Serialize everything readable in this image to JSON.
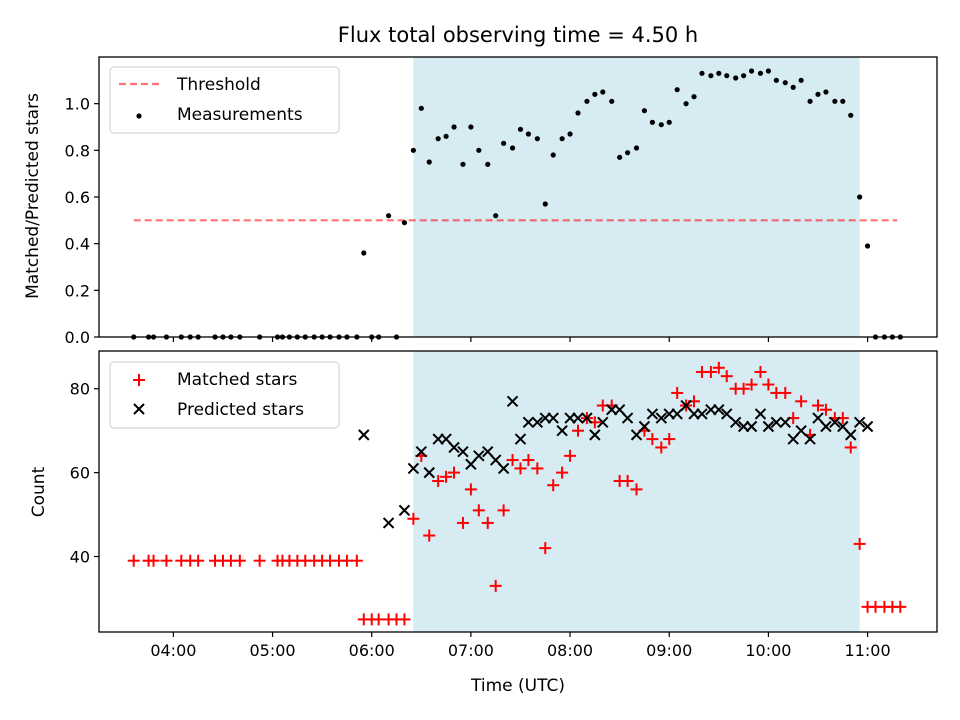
{
  "chart_data": {
    "title": "Flux total observing time = 4.50 h",
    "xlabel": "Time (UTC)",
    "x_ticks": [
      "04:00",
      "05:00",
      "06:00",
      "07:00",
      "08:00",
      "09:00",
      "10:00",
      "11:00"
    ],
    "x_tick_hours": [
      4,
      5,
      6,
      7,
      8,
      9,
      10,
      11
    ],
    "xlim_hours": [
      3.25,
      11.7
    ],
    "shaded_interval_hours": [
      6.42,
      10.92
    ],
    "colors": {
      "shade": "#add8e6",
      "threshold": "#ff0000",
      "matched": "#ff0000",
      "predicted": "#000000",
      "measurements": "#000000"
    },
    "panels": [
      {
        "type": "scatter",
        "ylabel": "Matched/Predicted stars",
        "ylim": [
          0,
          1.2
        ],
        "y_ticks": [
          0.0,
          0.2,
          0.4,
          0.6,
          0.8,
          1.0
        ],
        "y_tick_labels": [
          "0.0",
          "0.2",
          "0.4",
          "0.6",
          "0.8",
          "1.0"
        ],
        "legend": {
          "position": "upper-left",
          "threshold_label": "Threshold",
          "measurements_label": "Measurements"
        },
        "threshold": {
          "value": 0.5,
          "x_range_hours": [
            3.6,
            11.3
          ]
        },
        "measurements": [
          [
            3.6,
            0
          ],
          [
            3.75,
            0
          ],
          [
            3.8,
            0
          ],
          [
            3.93,
            0
          ],
          [
            4.08,
            0
          ],
          [
            4.17,
            0
          ],
          [
            4.25,
            0
          ],
          [
            4.42,
            0
          ],
          [
            4.5,
            0
          ],
          [
            4.58,
            0
          ],
          [
            4.67,
            0
          ],
          [
            4.87,
            0
          ],
          [
            5.05,
            0
          ],
          [
            5.1,
            0
          ],
          [
            5.17,
            0
          ],
          [
            5.25,
            0
          ],
          [
            5.33,
            0
          ],
          [
            5.42,
            0
          ],
          [
            5.5,
            0
          ],
          [
            5.58,
            0
          ],
          [
            5.67,
            0
          ],
          [
            5.75,
            0
          ],
          [
            5.85,
            0
          ],
          [
            5.92,
            0.36
          ],
          [
            6.0,
            0
          ],
          [
            6.07,
            0
          ],
          [
            6.17,
            0.52
          ],
          [
            6.25,
            0
          ],
          [
            6.33,
            0.49
          ],
          [
            6.42,
            0.8
          ],
          [
            6.5,
            0.98
          ],
          [
            6.58,
            0.75
          ],
          [
            6.67,
            0.85
          ],
          [
            6.75,
            0.86
          ],
          [
            6.83,
            0.9
          ],
          [
            6.92,
            0.74
          ],
          [
            7.0,
            0.9
          ],
          [
            7.08,
            0.8
          ],
          [
            7.17,
            0.74
          ],
          [
            7.25,
            0.52
          ],
          [
            7.33,
            0.83
          ],
          [
            7.42,
            0.81
          ],
          [
            7.5,
            0.89
          ],
          [
            7.58,
            0.87
          ],
          [
            7.67,
            0.85
          ],
          [
            7.75,
            0.57
          ],
          [
            7.83,
            0.78
          ],
          [
            7.92,
            0.85
          ],
          [
            8.0,
            0.87
          ],
          [
            8.08,
            0.96
          ],
          [
            8.17,
            1.01
          ],
          [
            8.25,
            1.04
          ],
          [
            8.33,
            1.05
          ],
          [
            8.42,
            1.01
          ],
          [
            8.5,
            0.77
          ],
          [
            8.58,
            0.79
          ],
          [
            8.67,
            0.81
          ],
          [
            8.75,
            0.97
          ],
          [
            8.83,
            0.92
          ],
          [
            8.92,
            0.91
          ],
          [
            9.0,
            0.92
          ],
          [
            9.08,
            1.06
          ],
          [
            9.17,
            1.0
          ],
          [
            9.25,
            1.03
          ],
          [
            9.33,
            1.13
          ],
          [
            9.42,
            1.12
          ],
          [
            9.5,
            1.13
          ],
          [
            9.58,
            1.12
          ],
          [
            9.67,
            1.11
          ],
          [
            9.75,
            1.12
          ],
          [
            9.83,
            1.14
          ],
          [
            9.92,
            1.13
          ],
          [
            10.0,
            1.14
          ],
          [
            10.08,
            1.1
          ],
          [
            10.17,
            1.09
          ],
          [
            10.25,
            1.07
          ],
          [
            10.33,
            1.1
          ],
          [
            10.42,
            1.01
          ],
          [
            10.5,
            1.04
          ],
          [
            10.58,
            1.05
          ],
          [
            10.67,
            1.01
          ],
          [
            10.75,
            1.01
          ],
          [
            10.83,
            0.95
          ],
          [
            10.92,
            0.6
          ],
          [
            11.0,
            0.39
          ],
          [
            11.08,
            0
          ],
          [
            11.17,
            0
          ],
          [
            11.25,
            0
          ],
          [
            11.33,
            0
          ]
        ]
      },
      {
        "type": "scatter",
        "ylabel": "Count",
        "ylim": [
          22,
          89
        ],
        "y_ticks": [
          40,
          60,
          80
        ],
        "y_tick_labels": [
          "40",
          "60",
          "80"
        ],
        "legend": {
          "position": "upper-left",
          "matched_label": "Matched stars",
          "predicted_label": "Predicted stars"
        },
        "series": [
          {
            "name": "Matched stars",
            "marker": "+",
            "points": [
              [
                3.6,
                39
              ],
              [
                3.75,
                39
              ],
              [
                3.8,
                39
              ],
              [
                3.93,
                39
              ],
              [
                4.08,
                39
              ],
              [
                4.17,
                39
              ],
              [
                4.25,
                39
              ],
              [
                4.42,
                39
              ],
              [
                4.5,
                39
              ],
              [
                4.58,
                39
              ],
              [
                4.67,
                39
              ],
              [
                4.87,
                39
              ],
              [
                5.05,
                39
              ],
              [
                5.1,
                39
              ],
              [
                5.17,
                39
              ],
              [
                5.25,
                39
              ],
              [
                5.33,
                39
              ],
              [
                5.42,
                39
              ],
              [
                5.5,
                39
              ],
              [
                5.58,
                39
              ],
              [
                5.67,
                39
              ],
              [
                5.75,
                39
              ],
              [
                5.85,
                39
              ],
              [
                5.92,
                25
              ],
              [
                6.0,
                25
              ],
              [
                6.07,
                25
              ],
              [
                6.17,
                25
              ],
              [
                6.25,
                25
              ],
              [
                6.33,
                25
              ],
              [
                6.42,
                49
              ],
              [
                6.5,
                64
              ],
              [
                6.58,
                45
              ],
              [
                6.67,
                58
              ],
              [
                6.75,
                59
              ],
              [
                6.83,
                60
              ],
              [
                6.92,
                48
              ],
              [
                7.0,
                56
              ],
              [
                7.08,
                51
              ],
              [
                7.17,
                48
              ],
              [
                7.25,
                33
              ],
              [
                7.33,
                51
              ],
              [
                7.42,
                63
              ],
              [
                7.5,
                61
              ],
              [
                7.58,
                63
              ],
              [
                7.67,
                61
              ],
              [
                7.75,
                42
              ],
              [
                7.83,
                57
              ],
              [
                7.92,
                60
              ],
              [
                8.0,
                64
              ],
              [
                8.08,
                70
              ],
              [
                8.17,
                73
              ],
              [
                8.25,
                72
              ],
              [
                8.33,
                76
              ],
              [
                8.42,
                76
              ],
              [
                8.5,
                58
              ],
              [
                8.58,
                58
              ],
              [
                8.67,
                56
              ],
              [
                8.75,
                70
              ],
              [
                8.83,
                68
              ],
              [
                8.92,
                66
              ],
              [
                9.0,
                68
              ],
              [
                9.08,
                79
              ],
              [
                9.17,
                76
              ],
              [
                9.25,
                77
              ],
              [
                9.33,
                84
              ],
              [
                9.42,
                84
              ],
              [
                9.5,
                85
              ],
              [
                9.58,
                83
              ],
              [
                9.67,
                80
              ],
              [
                9.75,
                80
              ],
              [
                9.83,
                81
              ],
              [
                9.92,
                84
              ],
              [
                10.0,
                81
              ],
              [
                10.08,
                79
              ],
              [
                10.17,
                79
              ],
              [
                10.25,
                73
              ],
              [
                10.33,
                77
              ],
              [
                10.42,
                69
              ],
              [
                10.5,
                76
              ],
              [
                10.58,
                75
              ],
              [
                10.67,
                73
              ],
              [
                10.75,
                73
              ],
              [
                10.83,
                66
              ],
              [
                10.92,
                43
              ],
              [
                11.0,
                28
              ],
              [
                11.08,
                28
              ],
              [
                11.17,
                28
              ],
              [
                11.25,
                28
              ],
              [
                11.33,
                28
              ]
            ]
          },
          {
            "name": "Predicted stars",
            "marker": "x",
            "points": [
              [
                5.92,
                69
              ],
              [
                6.17,
                48
              ],
              [
                6.33,
                51
              ],
              [
                6.42,
                61
              ],
              [
                6.5,
                65
              ],
              [
                6.58,
                60
              ],
              [
                6.67,
                68
              ],
              [
                6.75,
                68
              ],
              [
                6.83,
                66
              ],
              [
                6.92,
                65
              ],
              [
                7.0,
                62
              ],
              [
                7.08,
                64
              ],
              [
                7.17,
                65
              ],
              [
                7.25,
                63
              ],
              [
                7.33,
                61
              ],
              [
                7.42,
                77
              ],
              [
                7.5,
                68
              ],
              [
                7.58,
                72
              ],
              [
                7.67,
                72
              ],
              [
                7.75,
                73
              ],
              [
                7.83,
                73
              ],
              [
                7.92,
                70
              ],
              [
                8.0,
                73
              ],
              [
                8.08,
                73
              ],
              [
                8.17,
                73
              ],
              [
                8.25,
                69
              ],
              [
                8.33,
                72
              ],
              [
                8.42,
                75
              ],
              [
                8.5,
                75
              ],
              [
                8.58,
                73
              ],
              [
                8.67,
                69
              ],
              [
                8.75,
                71
              ],
              [
                8.83,
                74
              ],
              [
                8.92,
                73
              ],
              [
                9.0,
                74
              ],
              [
                9.08,
                74
              ],
              [
                9.17,
                76
              ],
              [
                9.25,
                74
              ],
              [
                9.33,
                74
              ],
              [
                9.42,
                75
              ],
              [
                9.5,
                75
              ],
              [
                9.58,
                74
              ],
              [
                9.67,
                72
              ],
              [
                9.75,
                71
              ],
              [
                9.83,
                71
              ],
              [
                9.92,
                74
              ],
              [
                10.0,
                71
              ],
              [
                10.08,
                72
              ],
              [
                10.17,
                72
              ],
              [
                10.25,
                68
              ],
              [
                10.33,
                70
              ],
              [
                10.42,
                68
              ],
              [
                10.5,
                73
              ],
              [
                10.58,
                71
              ],
              [
                10.67,
                72
              ],
              [
                10.75,
                71
              ],
              [
                10.83,
                69
              ],
              [
                10.92,
                72
              ],
              [
                11.0,
                71
              ]
            ]
          }
        ]
      }
    ]
  }
}
